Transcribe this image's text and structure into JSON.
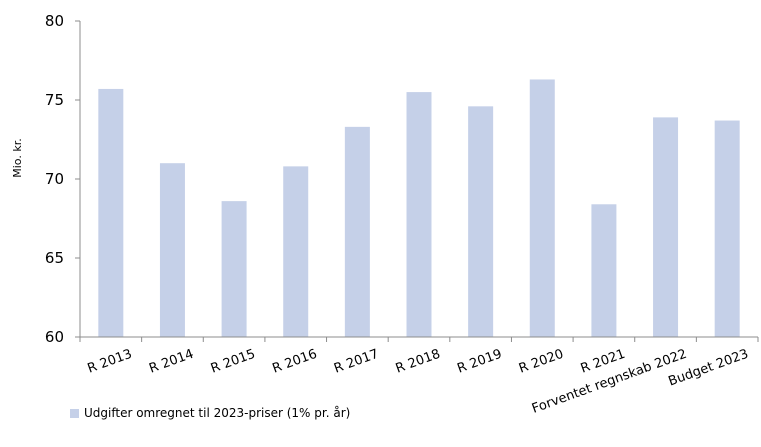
{
  "chart_data": {
    "type": "bar",
    "categories": [
      "R 2013",
      "R 2014",
      "R 2015",
      "R 2016",
      "R 2017",
      "R 2018",
      "R 2019",
      "R 2020",
      "R 2021",
      "Forventet regnskab 2022",
      "Budget 2023"
    ],
    "series": [
      {
        "name": "Udgifter omregnet til 2023-priser (1% pr. år)",
        "values": [
          75.7,
          71.0,
          68.6,
          70.8,
          73.3,
          75.5,
          74.6,
          76.3,
          68.4,
          73.9,
          73.7
        ]
      }
    ],
    "ylabel": "Mio. kr.",
    "xlabel": "",
    "ylim": [
      60,
      80
    ],
    "yticks": [
      60,
      65,
      70,
      75,
      80
    ],
    "grid": false,
    "legend": "bottom-left",
    "bar_color": "#c5d0e8",
    "axis_color": "#8c8c8c"
  }
}
